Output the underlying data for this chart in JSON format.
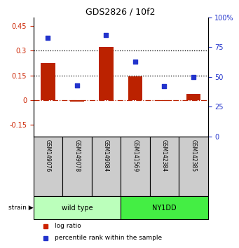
{
  "title": "GDS2826 / 10f2",
  "samples": [
    "GSM149076",
    "GSM149078",
    "GSM149084",
    "GSM141569",
    "GSM142384",
    "GSM142385"
  ],
  "log_ratio": [
    0.225,
    -0.01,
    0.32,
    0.145,
    -0.005,
    0.04
  ],
  "percentile_rank": [
    83,
    43,
    85,
    63,
    42,
    50
  ],
  "groups": [
    {
      "label": "wild type",
      "indices": [
        0,
        1,
        2
      ],
      "color": "#bbffbb"
    },
    {
      "label": "NY1DD",
      "indices": [
        3,
        4,
        5
      ],
      "color": "#44ee44"
    }
  ],
  "ylim_left": [
    -0.22,
    0.5
  ],
  "ylim_right": [
    0,
    100
  ],
  "yticks_left": [
    -0.15,
    0,
    0.15,
    0.3,
    0.45
  ],
  "yticks_right": [
    0,
    25,
    50,
    75,
    100
  ],
  "hlines_dotted": [
    0.15,
    0.3
  ],
  "hline_dashdot": 0.0,
  "bar_color": "#bb2200",
  "dot_color": "#2233cc",
  "legend_bar_color": "#cc2200",
  "legend_dot_color": "#2233cc",
  "legend_log_ratio": "log ratio",
  "legend_percentile": "percentile rank within the sample",
  "strain_label": "strain",
  "ylabel_left_color": "#cc2200",
  "ylabel_right_color": "#2233cc",
  "sample_box_color": "#cccccc",
  "title_fontsize": 9,
  "tick_fontsize": 7,
  "bar_width": 0.5
}
